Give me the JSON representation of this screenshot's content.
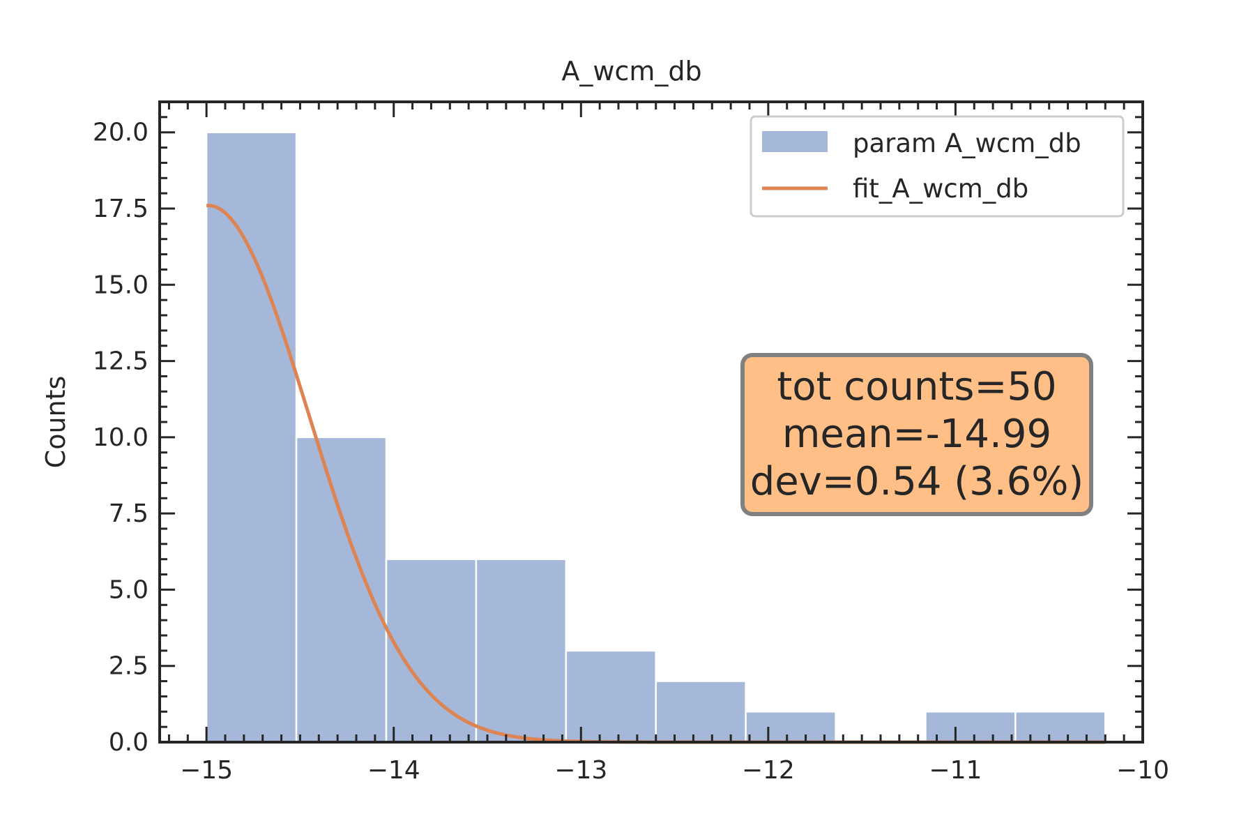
{
  "chart_data": {
    "type": "bar",
    "title": "A_wcm_db",
    "xlabel": "",
    "ylabel": "Counts",
    "xlim": [
      -15.25,
      -10
    ],
    "ylim": [
      0,
      21
    ],
    "x_ticks": [
      -15,
      -14,
      -13,
      -12,
      -11,
      -10
    ],
    "x_tick_labels": [
      "−15",
      "−14",
      "−13",
      "−12",
      "−11",
      "−10"
    ],
    "y_ticks": [
      0,
      2.5,
      5,
      7.5,
      10,
      12.5,
      15,
      17.5,
      20
    ],
    "y_tick_labels": [
      "0.0",
      "2.5",
      "5.0",
      "7.5",
      "10.0",
      "12.5",
      "15.0",
      "17.5",
      "20.0"
    ],
    "bin_edges": [
      -15.0,
      -14.52,
      -14.04,
      -13.56,
      -13.08,
      -12.6,
      -12.12,
      -11.64,
      -11.16,
      -10.68,
      -10.2
    ],
    "counts": [
      20,
      10,
      6,
      6,
      3,
      2,
      1,
      0,
      1,
      1
    ],
    "series": [
      {
        "name": "param A_wcm_db",
        "kind": "histogram",
        "color": "#a5b8d9"
      },
      {
        "name": "fit_A_wcm_db",
        "kind": "line",
        "color": "#dd8452",
        "gaussian": {
          "amplitude": 17.6,
          "mean": -14.99,
          "sigma": 0.54
        },
        "x_range": [
          -15.0,
          -10.2
        ]
      }
    ],
    "legend": {
      "position": "top-right"
    },
    "annotation": {
      "lines": [
        "tot counts=50",
        "mean=-14.99",
        "dev=0.54 (3.6%)"
      ],
      "background": "#ffbf86",
      "border": "#808080"
    },
    "grid": false
  }
}
